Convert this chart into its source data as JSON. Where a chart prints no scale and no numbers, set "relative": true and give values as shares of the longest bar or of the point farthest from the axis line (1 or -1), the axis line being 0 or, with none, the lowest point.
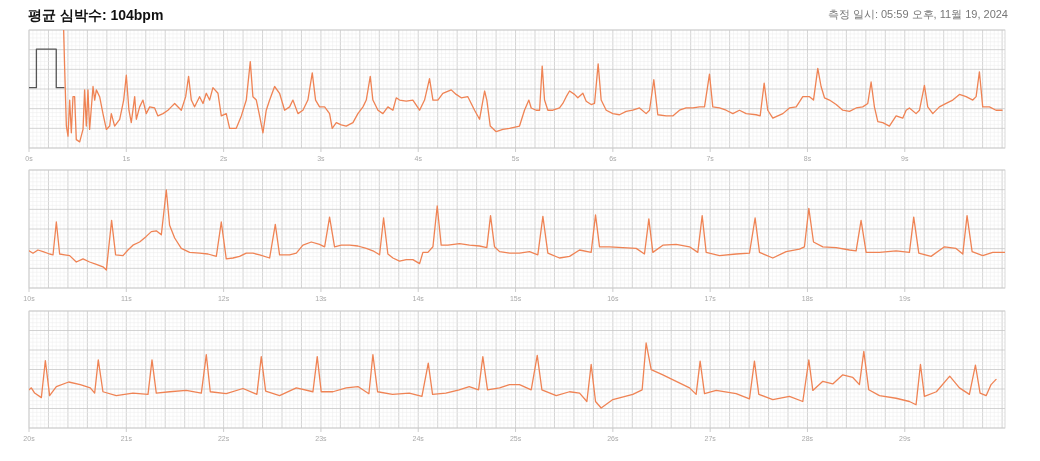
{
  "chart_data": [
    {
      "type": "line",
      "title": "평균 심박수: 104bpm",
      "subtitle": "측정 일시: 05:59 오후, 11월 19, 2024",
      "relative": true,
      "grid": true,
      "xlim": [
        0,
        10.03
      ],
      "xticks": [
        {
          "value": 0,
          "label": "0s"
        },
        {
          "value": 1,
          "label": "1s"
        },
        {
          "value": 2,
          "label": "2s"
        },
        {
          "value": 3,
          "label": "3s"
        },
        {
          "value": 4,
          "label": "4s"
        },
        {
          "value": 5,
          "label": "5s"
        },
        {
          "value": 6,
          "label": "6s"
        },
        {
          "value": 7,
          "label": "7s"
        },
        {
          "value": 8,
          "label": "8s"
        },
        {
          "value": 9,
          "label": "9s"
        }
      ],
      "series": [
        {
          "color": "#555555",
          "x": [
            0,
            0.076,
            0.076,
            0.28,
            0.28,
            0.36
          ],
          "values": [
            0.49,
            0.49,
            0.83,
            0.83,
            0.49,
            0.49
          ]
        },
        {
          "color": "#ef8354",
          "x": [
            0.356,
            0.366,
            0.384,
            0.401,
            0.418,
            0.435,
            0.452,
            0.469,
            0.486,
            0.521,
            0.555,
            0.572,
            0.589,
            0.606,
            0.623,
            0.658,
            0.675,
            0.692,
            0.726,
            0.76,
            0.795,
            0.829,
            0.846,
            0.88,
            0.932,
            0.973,
            1.0,
            1.027,
            1.051,
            1.086,
            1.103,
            1.137,
            1.171,
            1.205,
            1.24,
            1.291,
            1.325,
            1.377,
            1.428,
            1.462,
            1.497,
            1.565,
            1.61,
            1.64,
            1.668,
            1.702,
            1.753,
            1.788,
            1.822,
            1.856,
            1.89,
            1.942,
            1.976,
            2.027,
            2.062,
            2.13,
            2.182,
            2.233,
            2.274,
            2.301,
            2.336,
            2.37,
            2.404,
            2.438,
            2.473,
            2.524,
            2.575,
            2.627,
            2.678,
            2.712,
            2.764,
            2.815,
            2.866,
            2.911,
            2.945,
            2.986,
            3.038,
            3.089,
            3.116,
            3.158,
            3.209,
            3.26,
            3.329,
            3.38,
            3.432,
            3.466,
            3.507,
            3.534,
            3.586,
            3.637,
            3.688,
            3.74,
            3.774,
            3.808,
            3.877,
            3.945,
            4.014,
            4.065,
            4.116,
            4.151,
            4.202,
            4.253,
            4.339,
            4.39,
            4.442,
            4.51,
            4.579,
            4.63,
            4.682,
            4.705,
            4.74,
            4.801,
            4.87,
            4.938,
            5.041,
            5.092,
            5.137,
            5.161,
            5.212,
            5.247,
            5.274,
            5.298,
            5.332,
            5.384,
            5.452,
            5.486,
            5.521,
            5.555,
            5.606,
            5.64,
            5.692,
            5.726,
            5.777,
            5.812,
            5.849,
            5.88,
            5.932,
            6.0,
            6.068,
            6.137,
            6.205,
            6.274,
            6.342,
            6.377,
            6.421,
            6.462,
            6.548,
            6.616,
            6.685,
            6.753,
            6.822,
            6.89,
            6.942,
            6.993,
            7.027,
            7.096,
            7.164,
            7.233,
            7.301,
            7.37,
            7.473,
            7.514,
            7.555,
            7.592,
            7.644,
            7.695,
            7.747,
            7.815,
            7.884,
            7.952,
            8.021,
            8.062,
            8.106,
            8.14,
            8.175,
            8.226,
            8.295,
            8.363,
            8.432,
            8.5,
            8.568,
            8.62,
            8.654,
            8.688,
            8.723,
            8.774,
            8.842,
            8.911,
            8.979,
            9.014,
            9.048,
            9.116,
            9.151,
            9.202,
            9.236,
            9.288,
            9.356,
            9.425,
            9.493,
            9.562,
            9.63,
            9.699,
            9.733,
            9.767,
            9.801,
            9.87,
            9.938,
            10.0
          ],
          "values": [
            1.0,
            0.68,
            0.15,
            0.06,
            0.38,
            0.09,
            0.41,
            0.41,
            0.03,
            0.01,
            0.12,
            0.47,
            0.15,
            0.47,
            0.12,
            0.5,
            0.38,
            0.47,
            0.41,
            0.26,
            0.12,
            0.15,
            0.26,
            0.15,
            0.21,
            0.38,
            0.6,
            0.29,
            0.18,
            0.41,
            0.21,
            0.32,
            0.38,
            0.26,
            0.32,
            0.31,
            0.24,
            0.26,
            0.29,
            0.32,
            0.35,
            0.29,
            0.41,
            0.59,
            0.38,
            0.32,
            0.41,
            0.35,
            0.44,
            0.38,
            0.49,
            0.44,
            0.24,
            0.26,
            0.13,
            0.13,
            0.24,
            0.38,
            0.72,
            0.41,
            0.38,
            0.24,
            0.09,
            0.29,
            0.38,
            0.5,
            0.44,
            0.29,
            0.32,
            0.38,
            0.26,
            0.29,
            0.38,
            0.62,
            0.38,
            0.32,
            0.32,
            0.26,
            0.13,
            0.18,
            0.16,
            0.15,
            0.18,
            0.26,
            0.32,
            0.38,
            0.59,
            0.38,
            0.29,
            0.26,
            0.32,
            0.29,
            0.4,
            0.38,
            0.37,
            0.38,
            0.29,
            0.38,
            0.57,
            0.38,
            0.38,
            0.44,
            0.47,
            0.43,
            0.4,
            0.41,
            0.29,
            0.21,
            0.46,
            0.38,
            0.15,
            0.1,
            0.12,
            0.13,
            0.15,
            0.29,
            0.38,
            0.31,
            0.29,
            0.29,
            0.68,
            0.38,
            0.29,
            0.29,
            0.31,
            0.35,
            0.41,
            0.46,
            0.43,
            0.4,
            0.44,
            0.37,
            0.34,
            0.35,
            0.7,
            0.38,
            0.29,
            0.26,
            0.25,
            0.28,
            0.29,
            0.31,
            0.26,
            0.29,
            0.56,
            0.25,
            0.24,
            0.24,
            0.29,
            0.31,
            0.31,
            0.32,
            0.32,
            0.61,
            0.32,
            0.31,
            0.29,
            0.26,
            0.29,
            0.26,
            0.25,
            0.24,
            0.53,
            0.29,
            0.22,
            0.24,
            0.26,
            0.31,
            0.32,
            0.41,
            0.41,
            0.38,
            0.66,
            0.5,
            0.4,
            0.38,
            0.34,
            0.29,
            0.28,
            0.31,
            0.32,
            0.35,
            0.54,
            0.32,
            0.19,
            0.18,
            0.15,
            0.24,
            0.22,
            0.29,
            0.31,
            0.26,
            0.29,
            0.51,
            0.32,
            0.26,
            0.32,
            0.35,
            0.38,
            0.43,
            0.41,
            0.38,
            0.41,
            0.63,
            0.32,
            0.32,
            0.29,
            0.29
          ]
        }
      ]
    },
    {
      "type": "line",
      "relative": true,
      "grid": true,
      "xlim": [
        10,
        20.03
      ],
      "xticks": [
        {
          "value": 10,
          "label": "10s"
        },
        {
          "value": 11,
          "label": "11s"
        },
        {
          "value": 12,
          "label": "12s"
        },
        {
          "value": 13,
          "label": "13s"
        },
        {
          "value": 14,
          "label": "14s"
        },
        {
          "value": 15,
          "label": "15s"
        },
        {
          "value": 16,
          "label": "16s"
        },
        {
          "value": 17,
          "label": "17s"
        },
        {
          "value": 18,
          "label": "18s"
        },
        {
          "value": 19,
          "label": "19s"
        }
      ],
      "series": [
        {
          "color": "#ef8354",
          "x": [
            10.0,
            10.041,
            10.092,
            10.144,
            10.212,
            10.247,
            10.281,
            10.315,
            10.366,
            10.418,
            10.486,
            10.555,
            10.623,
            10.692,
            10.76,
            10.795,
            10.849,
            10.89,
            10.966,
            11.017,
            11.068,
            11.137,
            11.205,
            11.257,
            11.308,
            11.36,
            11.411,
            11.445,
            11.497,
            11.565,
            11.651,
            11.753,
            11.839,
            11.925,
            11.976,
            12.027,
            12.096,
            12.164,
            12.233,
            12.301,
            12.37,
            12.473,
            12.531,
            12.575,
            12.678,
            12.747,
            12.815,
            12.901,
            12.986,
            13.038,
            13.089,
            13.14,
            13.209,
            13.295,
            13.38,
            13.466,
            13.534,
            13.603,
            13.644,
            13.688,
            13.74,
            13.808,
            13.877,
            13.945,
            14.014,
            14.048,
            14.099,
            14.151,
            14.195,
            14.236,
            14.305,
            14.425,
            14.527,
            14.63,
            14.705,
            14.743,
            14.784,
            14.836,
            14.94,
            15.041,
            15.144,
            15.229,
            15.281,
            15.332,
            15.452,
            15.555,
            15.658,
            15.777,
            15.822,
            15.863,
            15.966,
            16.103,
            16.24,
            16.325,
            16.37,
            16.411,
            16.514,
            16.651,
            16.788,
            16.873,
            16.918,
            16.959,
            17.096,
            17.267,
            17.404,
            17.462,
            17.507,
            17.644,
            17.781,
            17.918,
            17.969,
            18.014,
            18.062,
            18.158,
            18.295,
            18.432,
            18.5,
            18.551,
            18.603,
            18.74,
            18.911,
            19.048,
            19.092,
            19.144,
            19.27,
            19.408,
            19.527,
            19.596,
            19.64,
            19.692,
            19.801,
            19.904,
            20.03
          ],
          "values": [
            0.24,
            0.21,
            0.25,
            0.23,
            0.2,
            0.19,
            0.6,
            0.2,
            0.19,
            0.18,
            0.1,
            0.14,
            0.1,
            0.07,
            0.04,
            0.0,
            0.62,
            0.19,
            0.18,
            0.25,
            0.31,
            0.35,
            0.42,
            0.48,
            0.49,
            0.44,
            1.0,
            0.56,
            0.4,
            0.27,
            0.22,
            0.21,
            0.2,
            0.17,
            0.6,
            0.14,
            0.15,
            0.17,
            0.21,
            0.21,
            0.19,
            0.15,
            0.57,
            0.19,
            0.19,
            0.21,
            0.31,
            0.35,
            0.32,
            0.29,
            0.66,
            0.29,
            0.31,
            0.31,
            0.3,
            0.27,
            0.24,
            0.19,
            0.65,
            0.2,
            0.15,
            0.11,
            0.13,
            0.13,
            0.08,
            0.22,
            0.22,
            0.29,
            0.8,
            0.31,
            0.31,
            0.33,
            0.31,
            0.3,
            0.28,
            0.68,
            0.29,
            0.23,
            0.21,
            0.21,
            0.23,
            0.19,
            0.67,
            0.21,
            0.15,
            0.17,
            0.25,
            0.22,
            0.69,
            0.29,
            0.29,
            0.28,
            0.27,
            0.2,
            0.64,
            0.22,
            0.31,
            0.32,
            0.29,
            0.22,
            0.68,
            0.22,
            0.18,
            0.2,
            0.21,
            0.65,
            0.22,
            0.15,
            0.23,
            0.26,
            0.29,
            0.77,
            0.35,
            0.29,
            0.28,
            0.25,
            0.24,
            0.62,
            0.22,
            0.22,
            0.24,
            0.22,
            0.66,
            0.21,
            0.17,
            0.29,
            0.27,
            0.2,
            0.68,
            0.23,
            0.18,
            0.22,
            0.22
          ]
        }
      ]
    },
    {
      "type": "line",
      "relative": true,
      "grid": true,
      "xlim": [
        20,
        30.03
      ],
      "xticks": [
        {
          "value": 20,
          "label": "20s"
        },
        {
          "value": 21,
          "label": "21s"
        },
        {
          "value": 22,
          "label": "22s"
        },
        {
          "value": 23,
          "label": "23s"
        },
        {
          "value": 24,
          "label": "24s"
        },
        {
          "value": 25,
          "label": "25s"
        },
        {
          "value": 26,
          "label": "26s"
        },
        {
          "value": 27,
          "label": "27s"
        },
        {
          "value": 28,
          "label": "28s"
        },
        {
          "value": 29,
          "label": "29s"
        }
      ],
      "series": [
        {
          "color": "#ef8354",
          "x": [
            20.0,
            20.024,
            20.058,
            20.127,
            20.168,
            20.212,
            20.281,
            20.408,
            20.527,
            20.63,
            20.675,
            20.712,
            20.76,
            20.897,
            21.068,
            21.223,
            21.264,
            21.308,
            21.445,
            21.616,
            21.771,
            21.822,
            21.863,
            22.027,
            22.199,
            22.342,
            22.387,
            22.432,
            22.575,
            22.747,
            22.918,
            22.962,
            23.003,
            23.123,
            23.26,
            23.38,
            23.493,
            23.534,
            23.582,
            23.736,
            23.908,
            24.038,
            24.103,
            24.147,
            24.284,
            24.421,
            24.524,
            24.62,
            24.664,
            24.712,
            24.836,
            24.938,
            25.041,
            25.161,
            25.223,
            25.271,
            25.418,
            25.555,
            25.658,
            25.733,
            25.777,
            25.822,
            25.88,
            26.0,
            26.205,
            26.301,
            26.342,
            26.394,
            26.514,
            26.651,
            26.788,
            26.856,
            26.897,
            26.942,
            27.062,
            27.267,
            27.404,
            27.455,
            27.5,
            27.644,
            27.815,
            27.952,
            28.014,
            28.055,
            28.158,
            28.26,
            28.363,
            28.466,
            28.534,
            28.579,
            28.63,
            28.74,
            28.911,
            29.048,
            29.116,
            29.161,
            29.202,
            29.325,
            29.462,
            29.562,
            29.664,
            29.726,
            29.774,
            29.836,
            29.887,
            29.938
          ],
          "values": [
            0.28,
            0.31,
            0.23,
            0.16,
            0.73,
            0.19,
            0.33,
            0.4,
            0.36,
            0.31,
            0.23,
            0.74,
            0.25,
            0.19,
            0.23,
            0.21,
            0.74,
            0.23,
            0.25,
            0.27,
            0.23,
            0.82,
            0.25,
            0.22,
            0.3,
            0.21,
            0.79,
            0.26,
            0.19,
            0.31,
            0.25,
            0.79,
            0.25,
            0.25,
            0.31,
            0.33,
            0.22,
            0.82,
            0.25,
            0.21,
            0.23,
            0.18,
            0.69,
            0.21,
            0.23,
            0.28,
            0.33,
            0.28,
            0.79,
            0.28,
            0.31,
            0.36,
            0.36,
            0.28,
            0.81,
            0.28,
            0.19,
            0.25,
            0.23,
            0.1,
            0.67,
            0.1,
            0.0,
            0.13,
            0.21,
            0.28,
            1.0,
            0.59,
            0.51,
            0.41,
            0.31,
            0.21,
            0.72,
            0.22,
            0.27,
            0.22,
            0.14,
            0.72,
            0.21,
            0.13,
            0.18,
            0.1,
            0.74,
            0.27,
            0.41,
            0.37,
            0.51,
            0.47,
            0.36,
            0.87,
            0.28,
            0.19,
            0.15,
            0.1,
            0.05,
            0.67,
            0.18,
            0.25,
            0.49,
            0.31,
            0.21,
            0.66,
            0.23,
            0.19,
            0.36,
            0.44
          ]
        }
      ]
    }
  ]
}
